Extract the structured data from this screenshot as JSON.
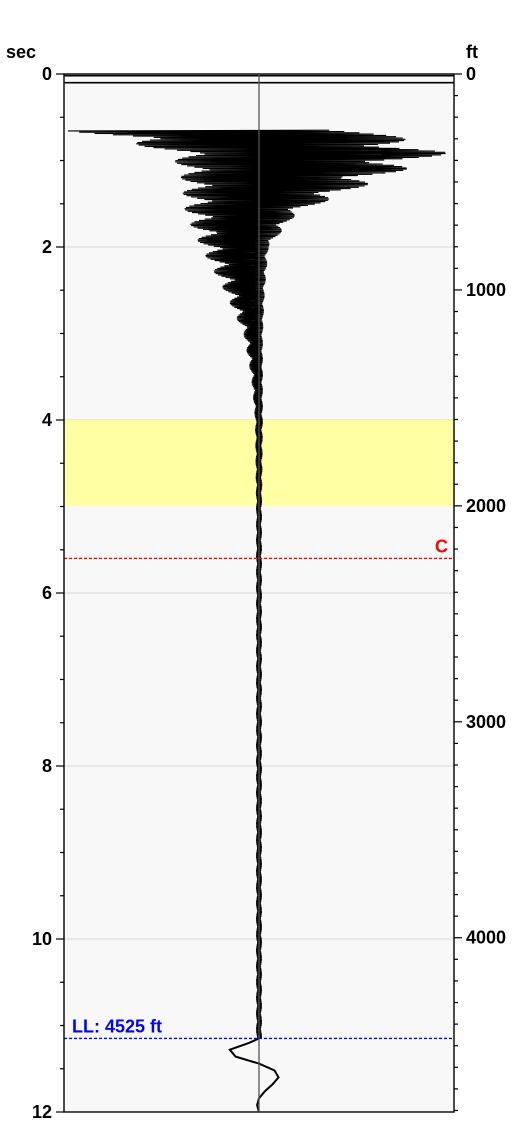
{
  "chart_data": {
    "type": "line",
    "left_axis": {
      "label": "sec",
      "range": [
        0,
        12
      ],
      "major_ticks": [
        "0",
        "2",
        "4",
        "6",
        "8",
        "10",
        "12"
      ],
      "major_values": [
        0,
        2,
        4,
        6,
        8,
        10,
        12
      ],
      "minor_step": 0.5
    },
    "right_axis": {
      "label": "ft",
      "range": [
        0,
        4807
      ],
      "major_ticks": [
        "0",
        "1000",
        "2000",
        "3000",
        "4000"
      ],
      "major_values": [
        0,
        1000,
        2000,
        3000,
        4000
      ],
      "minor_step": 100
    },
    "gridlines": true,
    "highlight_band": {
      "from_sec": 4.0,
      "to_sec": 5.0,
      "color": "#ffff99"
    },
    "markers": [
      {
        "label": "C",
        "at_sec": 5.6,
        "color": "#ff0000"
      },
      {
        "label": "LL: 4525 ft",
        "at_sec": 11.15,
        "color": "#0000ff"
      }
    ],
    "trace": {
      "color": "#000000",
      "center_line": true,
      "envelope": {
        "sec": [
          0.65,
          0.9,
          1.2,
          1.6,
          2.0,
          2.5,
          3.0,
          3.5,
          4.0,
          5.0,
          7.0,
          9.0,
          11.0,
          11.15
        ],
        "min": [
          -1.0,
          -0.45,
          -0.4,
          -0.38,
          -0.3,
          -0.18,
          -0.08,
          -0.04,
          -0.02,
          -0.015,
          -0.015,
          -0.015,
          -0.015,
          -0.015
        ],
        "max": [
          0.6,
          0.98,
          0.65,
          0.2,
          0.05,
          0.03,
          0.02,
          0.02,
          0.02,
          0.015,
          0.015,
          0.015,
          0.015,
          0.015
        ]
      },
      "end_wiggle": {
        "sec": [
          11.15,
          11.2,
          11.28,
          11.36,
          11.44,
          11.52,
          11.6,
          11.68,
          11.76,
          11.84,
          11.92,
          12.0
        ],
        "amplitude": [
          0.0,
          -0.05,
          -0.15,
          -0.12,
          0.0,
          0.08,
          0.1,
          0.07,
          0.03,
          0.0,
          -0.01,
          0.0
        ]
      }
    }
  }
}
